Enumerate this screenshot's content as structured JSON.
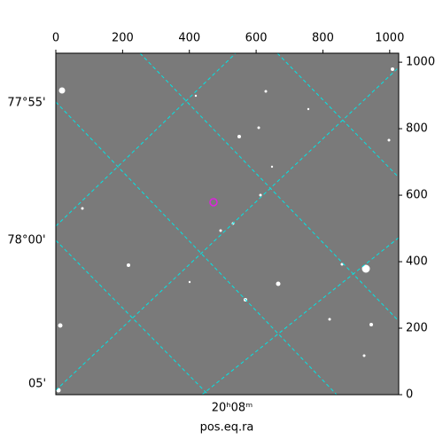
{
  "chart_data": {
    "type": "image",
    "xlabel": "pos.eq.ra",
    "xticks": [
      0,
      200,
      400,
      600,
      800,
      1000
    ],
    "xlim": [
      0,
      1027
    ],
    "yticks": [
      0,
      200,
      400,
      600,
      800,
      1000
    ],
    "ylim": [
      0,
      1027
    ],
    "dec_labels": [
      "77°55'",
      "78°00'",
      "05'"
    ],
    "ra_labels": [
      "20ʰ08ᵐ"
    ],
    "grid_color": "#00e5e5"
  }
}
